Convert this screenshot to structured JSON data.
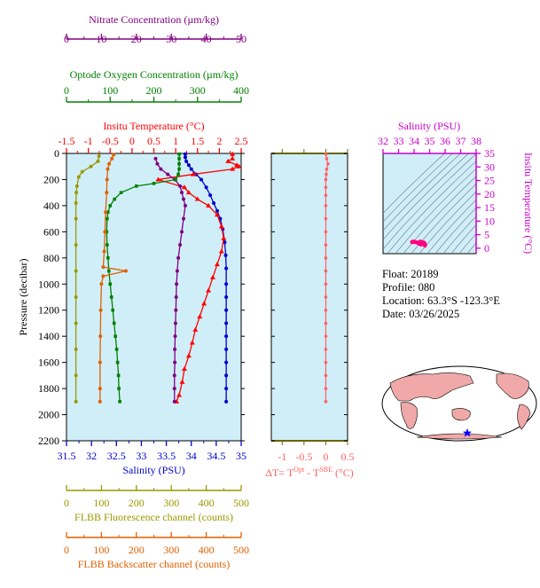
{
  "colors": {
    "nitrate": "#800080",
    "oxygen": "#008000",
    "temperature": "#ff0000",
    "salinity": "#0000cc",
    "fluorescence": "#999900",
    "backscatter": "#e06000",
    "delta_t": "#ff6060",
    "ts_axis": "#cc00cc",
    "plot_bg": "#d0eef8"
  },
  "info": {
    "float": "Float:  20189",
    "profile": "Profile:  080",
    "location": "Location:  63.3°S  -123.3°E",
    "date": "Date:  03/26/2025"
  },
  "chart_data": [
    {
      "type": "line",
      "panel": "main-profile",
      "y_axis": {
        "label": "Pressure (decibar)",
        "range": [
          2200,
          0
        ],
        "ticks": [
          0,
          200,
          400,
          600,
          800,
          1000,
          1200,
          1400,
          1600,
          1800,
          2000,
          2200
        ]
      },
      "axes": [
        {
          "key": "nitrate",
          "title": "Nitrate Concentration (µm/kg)",
          "range": [
            0,
            50
          ],
          "ticks": [
            0,
            10,
            20,
            30,
            40,
            50
          ]
        },
        {
          "key": "oxygen",
          "title": "Optode Oxygen Concentration (µm/kg)",
          "range": [
            0,
            400
          ],
          "ticks": [
            0,
            100,
            200,
            300,
            400
          ]
        },
        {
          "key": "temperature",
          "title": "Insitu Temperature (°C)",
          "range": [
            -1.5,
            2.5
          ],
          "ticks": [
            -1.5,
            -1.0,
            -0.5,
            0.0,
            0.5,
            1.0,
            1.5,
            2.0,
            2.5
          ]
        },
        {
          "key": "salinity",
          "title": "Salinity (PSU)",
          "range": [
            31.5,
            35.0
          ],
          "ticks": [
            31.5,
            32.0,
            32.5,
            33.0,
            33.5,
            34.0,
            34.5,
            35.0
          ]
        },
        {
          "key": "fluorescence",
          "title": "FLBB Fluorescence channel (counts)",
          "range": [
            0,
            500
          ],
          "ticks": [
            0,
            100,
            200,
            300,
            400,
            500
          ]
        },
        {
          "key": "backscatter",
          "title": "FLBB Backscatter channel (counts)",
          "range": [
            0,
            500
          ],
          "ticks": [
            0,
            100,
            200,
            300,
            400,
            500
          ]
        }
      ],
      "series": [
        {
          "key": "salinity",
          "points": [
            [
              33.88,
              5
            ],
            [
              33.88,
              30
            ],
            [
              33.9,
              60
            ],
            [
              33.95,
              90
            ],
            [
              34.0,
              120
            ],
            [
              34.1,
              160
            ],
            [
              34.2,
              200
            ],
            [
              34.3,
              260
            ],
            [
              34.38,
              320
            ],
            [
              34.45,
              380
            ],
            [
              34.52,
              440
            ],
            [
              34.58,
              500
            ],
            [
              34.63,
              580
            ],
            [
              34.67,
              680
            ],
            [
              34.69,
              780
            ],
            [
              34.7,
              880
            ],
            [
              34.7,
              1000
            ],
            [
              34.7,
              1100
            ],
            [
              34.7,
              1200
            ],
            [
              34.7,
              1300
            ],
            [
              34.7,
              1400
            ],
            [
              34.7,
              1500
            ],
            [
              34.7,
              1600
            ],
            [
              34.7,
              1700
            ],
            [
              34.7,
              1800
            ],
            [
              34.7,
              1900
            ]
          ]
        },
        {
          "key": "temperature",
          "points": [
            [
              2.3,
              5
            ],
            [
              2.3,
              40
            ],
            [
              2.2,
              60
            ],
            [
              2.4,
              90
            ],
            [
              2.45,
              100
            ],
            [
              2.3,
              120
            ],
            [
              1.4,
              160
            ],
            [
              0.6,
              200
            ],
            [
              1.2,
              260
            ],
            [
              1.3,
              300
            ],
            [
              1.5,
              350
            ],
            [
              1.75,
              400
            ],
            [
              1.95,
              470
            ],
            [
              2.05,
              560
            ],
            [
              2.1,
              650
            ],
            [
              2.05,
              750
            ],
            [
              1.95,
              850
            ],
            [
              1.85,
              950
            ],
            [
              1.75,
              1050
            ],
            [
              1.65,
              1150
            ],
            [
              1.55,
              1250
            ],
            [
              1.45,
              1350
            ],
            [
              1.38,
              1450
            ],
            [
              1.3,
              1550
            ],
            [
              1.2,
              1650
            ],
            [
              1.15,
              1750
            ],
            [
              1.08,
              1850
            ],
            [
              1.02,
              1900
            ]
          ]
        },
        {
          "key": "nitrate",
          "points": [
            [
              25.5,
              40
            ],
            [
              26,
              80
            ],
            [
              27,
              120
            ],
            [
              29,
              160
            ],
            [
              31,
              200
            ],
            [
              32.5,
              250
            ],
            [
              33,
              300
            ],
            [
              33.5,
              350
            ],
            [
              34,
              400
            ],
            [
              33.5,
              500
            ],
            [
              33,
              600
            ],
            [
              32.5,
              700
            ],
            [
              32,
              800
            ],
            [
              31.7,
              900
            ],
            [
              31.5,
              1000
            ],
            [
              31.4,
              1100
            ],
            [
              31.3,
              1200
            ],
            [
              31.2,
              1300
            ],
            [
              31.1,
              1400
            ],
            [
              31.0,
              1500
            ],
            [
              31.0,
              1600
            ],
            [
              30.9,
              1700
            ],
            [
              30.9,
              1800
            ],
            [
              30.9,
              1900
            ]
          ]
        },
        {
          "key": "oxygen",
          "points": [
            [
              258,
              5
            ],
            [
              258,
              40
            ],
            [
              258,
              80
            ],
            [
              258,
              120
            ],
            [
              256,
              160
            ],
            [
              250,
              200
            ],
            [
              200,
              230
            ],
            [
              160,
              250
            ],
            [
              125,
              300
            ],
            [
              110,
              350
            ],
            [
              100,
              400
            ],
            [
              95,
              450
            ],
            [
              93,
              500
            ],
            [
              92,
              600
            ],
            [
              93,
              700
            ],
            [
              95,
              800
            ],
            [
              97,
              900
            ],
            [
              100,
              1000
            ],
            [
              103,
              1100
            ],
            [
              106,
              1200
            ],
            [
              109,
              1300
            ],
            [
              112,
              1400
            ],
            [
              115,
              1500
            ],
            [
              117,
              1600
            ],
            [
              119,
              1700
            ],
            [
              120,
              1800
            ],
            [
              122,
              1900
            ]
          ]
        },
        {
          "key": "fluorescence",
          "points": [
            [
              93,
              20
            ],
            [
              90,
              60
            ],
            [
              70,
              100
            ],
            [
              45,
              140
            ],
            [
              35,
              180
            ],
            [
              30,
              250
            ],
            [
              28,
              300
            ],
            [
              27,
              380
            ],
            [
              27,
              500
            ],
            [
              27,
              700
            ],
            [
              27,
              900
            ],
            [
              27,
              1100
            ],
            [
              27,
              1300
            ],
            [
              27,
              1500
            ],
            [
              27,
              1700
            ],
            [
              27,
              1900
            ]
          ]
        },
        {
          "key": "backscatter",
          "points": [
            [
              135,
              10
            ],
            [
              130,
              40
            ],
            [
              122,
              80
            ],
            [
              118,
              120
            ],
            [
              116,
              200
            ],
            [
              115,
              300
            ],
            [
              112,
              450
            ],
            [
              110,
              600
            ],
            [
              108,
              750
            ],
            [
              105,
              870
            ],
            [
              170,
              900
            ],
            [
              105,
              940
            ],
            [
              100,
              1000
            ],
            [
              98,
              1200
            ],
            [
              97,
              1400
            ],
            [
              96,
              1600
            ],
            [
              96,
              1800
            ],
            [
              96,
              1900
            ]
          ]
        }
      ]
    },
    {
      "type": "line",
      "panel": "delta-t",
      "x_axis": {
        "label": "ΔT= T",
        "sup1": "Opt",
        "mid": " - T",
        "sup2": "SBE",
        "unit": " (°C)",
        "range": [
          -1.25,
          0.5
        ],
        "ticks": [
          -1.0,
          -0.5,
          0.0,
          0.5
        ]
      },
      "y_range": [
        2200,
        0
      ],
      "series": [
        {
          "key": "delta_t",
          "points": [
            [
              0.0,
              5
            ],
            [
              0.02,
              40
            ],
            [
              0.05,
              80
            ],
            [
              0.02,
              120
            ],
            [
              0.01,
              160
            ],
            [
              0.0,
              200
            ],
            [
              0.0,
              260
            ],
            [
              0.0,
              320
            ],
            [
              0.0,
              400
            ],
            [
              0.0,
              500
            ],
            [
              0.0,
              600
            ],
            [
              0.0,
              700
            ],
            [
              0.0,
              800
            ],
            [
              0.0,
              900
            ],
            [
              0.0,
              1000
            ],
            [
              0.0,
              1100
            ],
            [
              0.0,
              1200
            ],
            [
              0.0,
              1300
            ],
            [
              0.0,
              1400
            ],
            [
              0.0,
              1500
            ],
            [
              0.0,
              1600
            ],
            [
              0.0,
              1700
            ],
            [
              0.0,
              1800
            ],
            [
              0.0,
              1900
            ]
          ]
        }
      ]
    },
    {
      "type": "scatter",
      "panel": "ts-diagram",
      "x_axis": {
        "label": "Salinity (PSU)",
        "range": [
          32,
          38
        ],
        "ticks": [
          32,
          33,
          34,
          35,
          36,
          37,
          38
        ]
      },
      "y_axis": {
        "label": "Insitu Temperature (°C)",
        "range": [
          -2,
          35
        ],
        "ticks": [
          0,
          5,
          10,
          15,
          20,
          25,
          30,
          35
        ]
      },
      "points": [
        [
          33.88,
          2.3
        ],
        [
          33.95,
          2.4
        ],
        [
          34.05,
          2.3
        ],
        [
          34.2,
          2.1
        ],
        [
          34.3,
          1.8
        ],
        [
          34.38,
          1.6
        ],
        [
          34.45,
          1.4
        ],
        [
          34.55,
          2.0
        ],
        [
          34.6,
          2.1
        ],
        [
          34.65,
          1.9
        ],
        [
          34.68,
          1.6
        ],
        [
          34.7,
          1.2
        ],
        [
          34.7,
          1.0
        ],
        [
          34.5,
          2.2
        ],
        [
          34.4,
          2.4
        ]
      ]
    }
  ]
}
